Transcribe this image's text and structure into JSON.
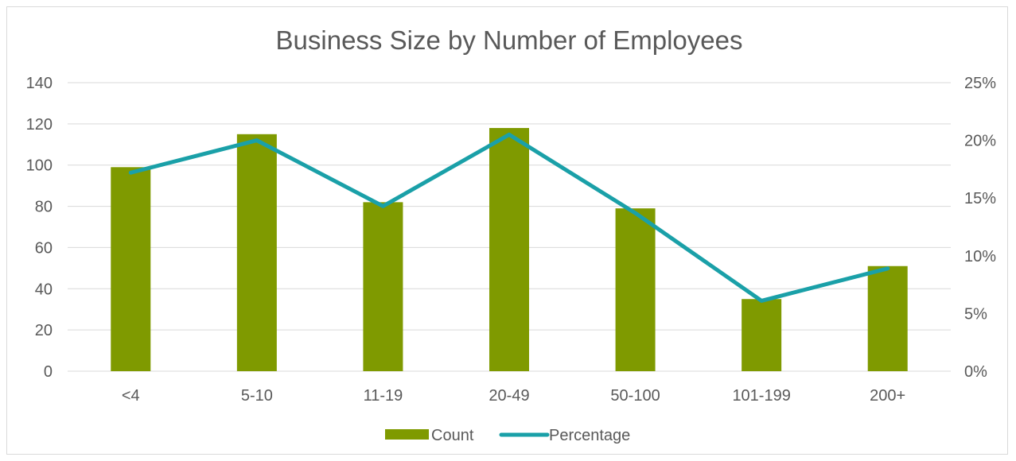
{
  "chart_data": {
    "type": "bar",
    "title": "Business Size by Number of Employees",
    "categories": [
      "<4",
      "5-10",
      "11-19",
      "20-49",
      "50-100",
      "101-199",
      "200+"
    ],
    "series": [
      {
        "name": "Count",
        "type": "bar",
        "axis": "left",
        "values": [
          99,
          115,
          82,
          118,
          79,
          35,
          51
        ]
      },
      {
        "name": "Percentage",
        "type": "line",
        "axis": "right",
        "values": [
          17.2,
          20.0,
          14.3,
          20.5,
          13.7,
          6.1,
          8.9
        ]
      }
    ],
    "y_left": {
      "min": 0,
      "max": 140,
      "step": 20,
      "ticks": [
        "0",
        "20",
        "40",
        "60",
        "80",
        "100",
        "120",
        "140"
      ]
    },
    "y_right": {
      "min": 0,
      "max": 25,
      "step": 5,
      "ticks": [
        "0%",
        "5%",
        "10%",
        "15%",
        "20%",
        "25%"
      ]
    },
    "grid": true,
    "legend_position": "bottom",
    "colors": {
      "bar": "#7f9a00",
      "line": "#1aa0a8",
      "grid": "#d9d9d9",
      "text": "#595959"
    }
  }
}
